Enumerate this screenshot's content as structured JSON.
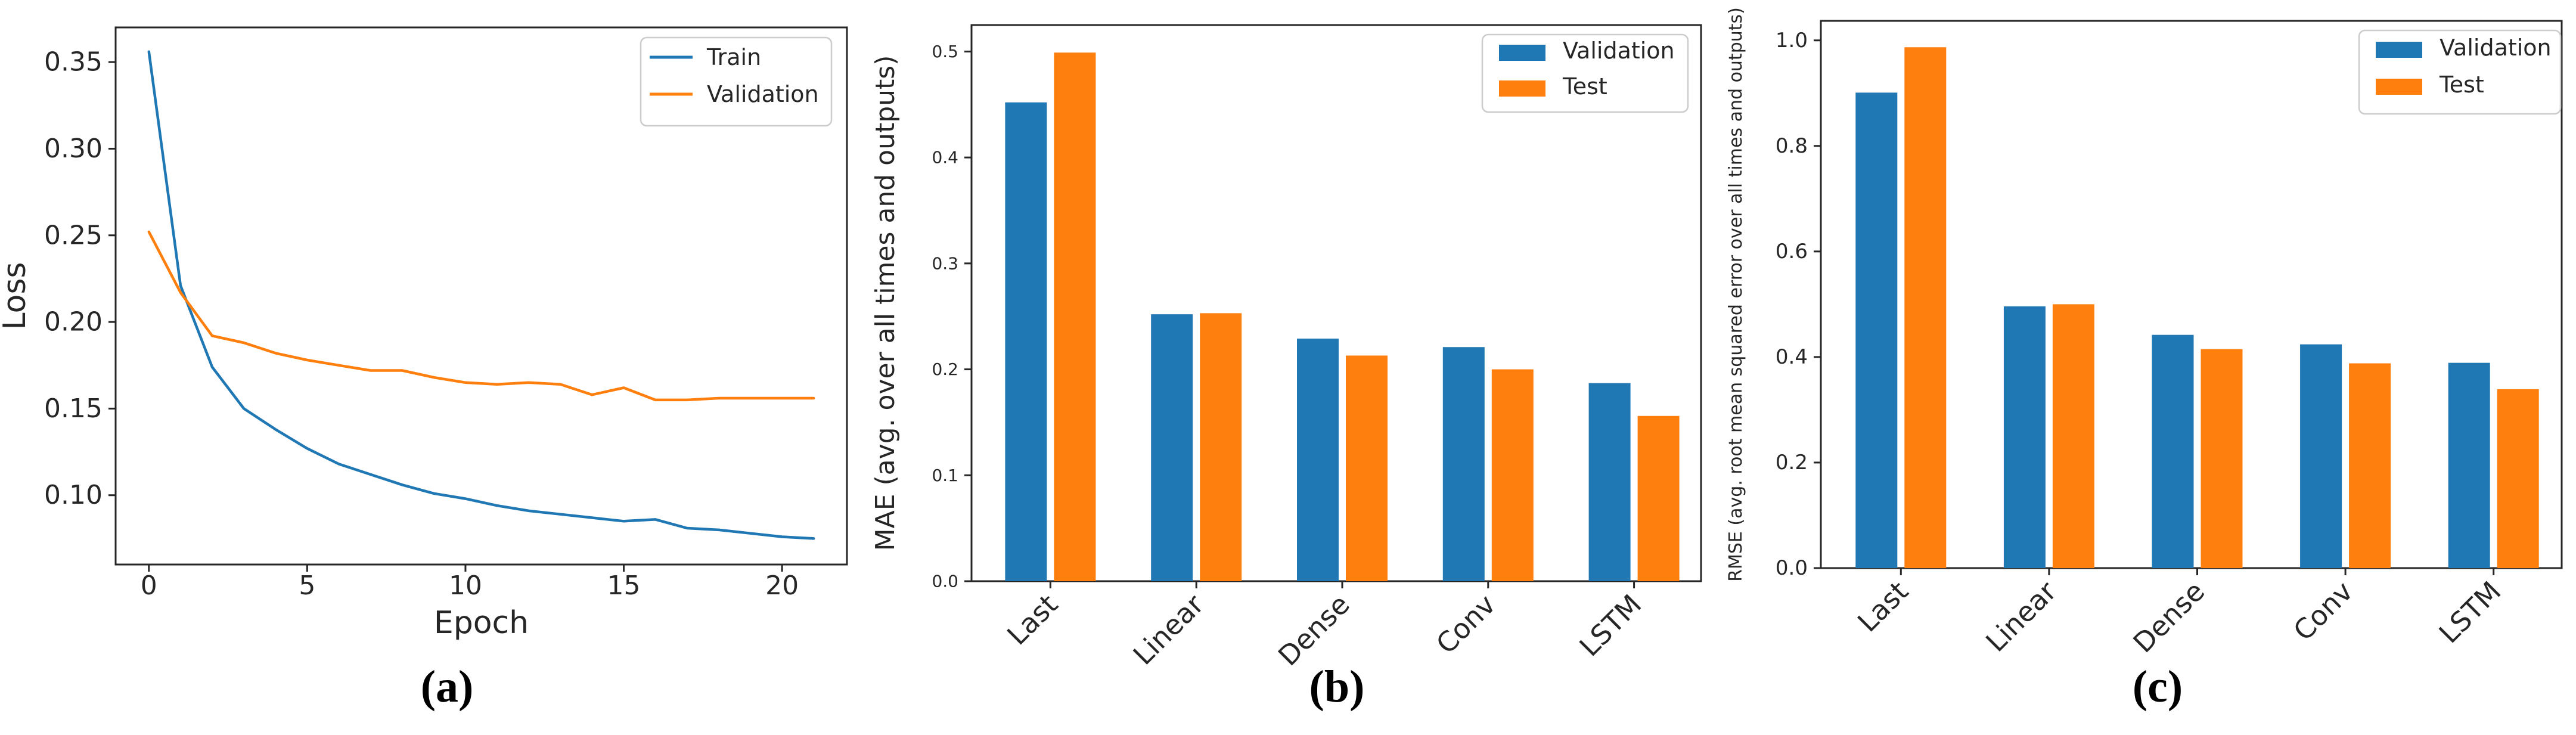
{
  "figure": {
    "background": "#ffffff"
  },
  "palette": {
    "series_blue": "#1f77b4",
    "series_orange": "#ff7f0e",
    "axis_color": "#262626",
    "legend_border": "#cccccc"
  },
  "chart_data": [
    {
      "panel": "a",
      "type": "line",
      "caption": "(a)",
      "xlabel": "Epoch",
      "ylabel": "Loss",
      "xlim": [
        -1.05,
        22.05
      ],
      "ylim": [
        0.06,
        0.37
      ],
      "x_ticks": [
        0,
        5,
        10,
        15,
        20
      ],
      "y_ticks": [
        0.1,
        0.15,
        0.2,
        0.25,
        0.3,
        0.35
      ],
      "x_tick_decimals": 0,
      "y_tick_decimals": 2,
      "grid": false,
      "legend": {
        "position": "top-right",
        "style": "line",
        "items": [
          {
            "label": "Train",
            "color": "#1f77b4"
          },
          {
            "label": "Validation",
            "color": "#ff7f0e"
          }
        ]
      },
      "series": [
        {
          "name": "Train",
          "color": "#1f77b4",
          "x": [
            0,
            1,
            2,
            3,
            4,
            5,
            6,
            7,
            8,
            9,
            10,
            11,
            12,
            13,
            14,
            15,
            16,
            17,
            18,
            19,
            20,
            21
          ],
          "y": [
            0.356,
            0.221,
            0.174,
            0.15,
            0.138,
            0.127,
            0.118,
            0.112,
            0.106,
            0.101,
            0.098,
            0.094,
            0.091,
            0.089,
            0.087,
            0.085,
            0.086,
            0.081,
            0.08,
            0.078,
            0.076,
            0.075
          ]
        },
        {
          "name": "Validation",
          "color": "#ff7f0e",
          "x": [
            0,
            1,
            2,
            3,
            4,
            5,
            6,
            7,
            8,
            9,
            10,
            11,
            12,
            13,
            14,
            15,
            16,
            17,
            18,
            19,
            20,
            21
          ],
          "y": [
            0.252,
            0.217,
            0.192,
            0.188,
            0.182,
            0.178,
            0.175,
            0.172,
            0.172,
            0.168,
            0.165,
            0.164,
            0.165,
            0.164,
            0.158,
            0.162,
            0.155,
            0.155,
            0.156,
            0.156,
            0.156,
            0.156
          ]
        }
      ]
    },
    {
      "panel": "b",
      "type": "bar",
      "caption": "(b)",
      "xlabel": "",
      "ylabel": "MAE (avg. over all times and outputs)",
      "categories": [
        "Last",
        "Linear",
        "Dense",
        "Conv",
        "LSTM"
      ],
      "ylim": [
        0,
        0.525
      ],
      "y_ticks": [
        0.0,
        0.1,
        0.2,
        0.3,
        0.4,
        0.5
      ],
      "y_tick_decimals": 1,
      "grid": false,
      "legend": {
        "position": "top-right",
        "style": "rect",
        "items": [
          {
            "label": "Validation",
            "color": "#1f77b4"
          },
          {
            "label": "Test",
            "color": "#ff7f0e"
          }
        ]
      },
      "series": [
        {
          "name": "Validation",
          "color": "#1f77b4",
          "values": [
            0.452,
            0.252,
            0.229,
            0.221,
            0.187
          ]
        },
        {
          "name": "Test",
          "color": "#ff7f0e",
          "values": [
            0.499,
            0.253,
            0.213,
            0.2,
            0.156
          ]
        }
      ]
    },
    {
      "panel": "c",
      "type": "bar",
      "caption": "(c)",
      "xlabel": "",
      "ylabel": "RMSE (avg. root mean squared error over all times and outputs)",
      "categories": [
        "Last",
        "Linear",
        "Dense",
        "Conv",
        "LSTM"
      ],
      "ylim": [
        0,
        1.037
      ],
      "y_ticks": [
        0.0,
        0.2,
        0.4,
        0.6,
        0.8,
        1.0
      ],
      "y_tick_decimals": 1,
      "grid": false,
      "legend": {
        "position": "top-right",
        "style": "rect",
        "items": [
          {
            "label": "Validation",
            "color": "#1f77b4"
          },
          {
            "label": "Test",
            "color": "#ff7f0e"
          }
        ]
      },
      "series": [
        {
          "name": "Validation",
          "color": "#1f77b4",
          "values": [
            0.901,
            0.496,
            0.442,
            0.424,
            0.389
          ]
        },
        {
          "name": "Test",
          "color": "#ff7f0e",
          "values": [
            0.987,
            0.5,
            0.415,
            0.388,
            0.339
          ]
        }
      ]
    }
  ]
}
